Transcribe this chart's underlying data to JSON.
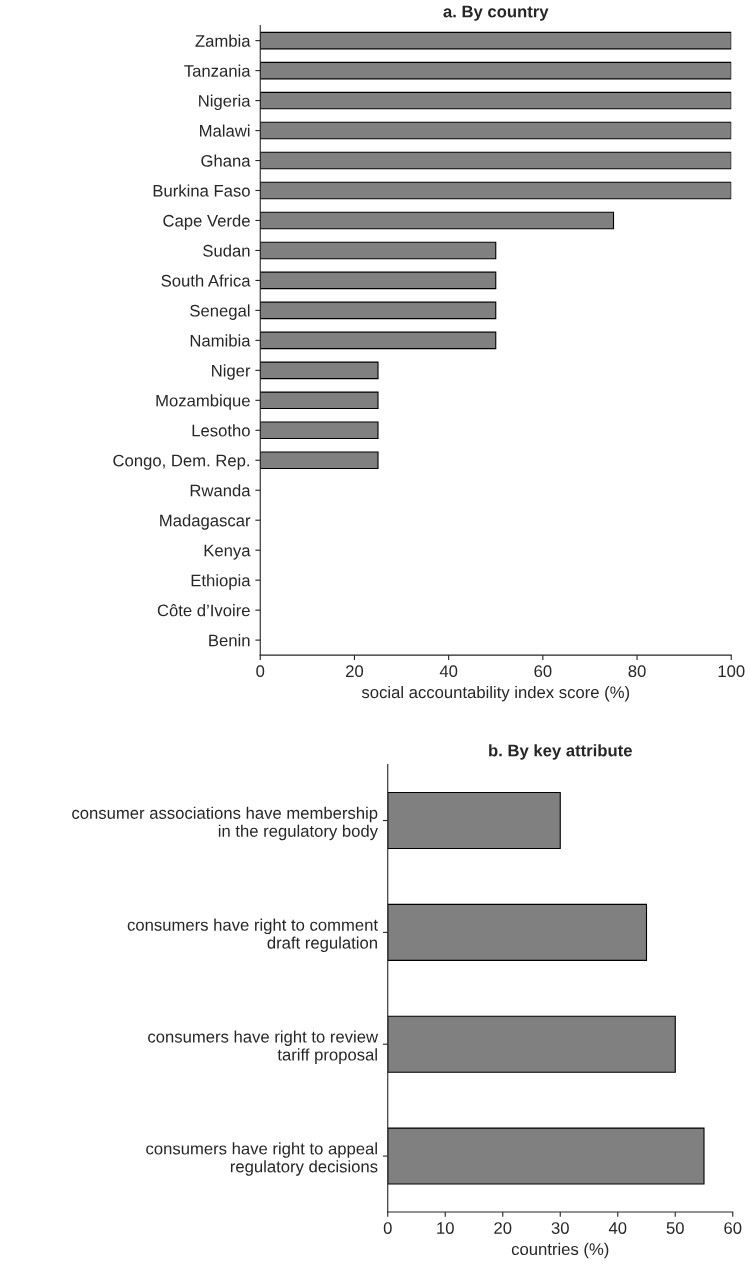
{
  "chart_data": [
    {
      "type": "bar",
      "orientation": "horizontal",
      "title": "a. By country",
      "xlabel": "social accountability index score (%)",
      "categories": [
        "Zambia",
        "Tanzania",
        "Nigeria",
        "Malawi",
        "Ghana",
        "Burkina Faso",
        "Cape Verde",
        "Sudan",
        "South Africa",
        "Senegal",
        "Namibia",
        "Niger",
        "Mozambique",
        "Lesotho",
        "Congo, Dem. Rep.",
        "Rwanda",
        "Madagascar",
        "Kenya",
        "Ethiopia",
        "Côte d’Ivoire",
        "Benin"
      ],
      "values": [
        100,
        100,
        100,
        100,
        100,
        100,
        75,
        50,
        50,
        50,
        50,
        25,
        25,
        25,
        25,
        0,
        0,
        0,
        0,
        0,
        0
      ],
      "color": "#808080",
      "xlim": [
        0,
        100
      ],
      "xticks": [
        0,
        20,
        40,
        60,
        80,
        100
      ],
      "grid": false
    },
    {
      "type": "bar",
      "orientation": "horizontal",
      "title": "b. By key attribute",
      "xlabel": "countries (%)",
      "categories": [
        "consumer associations have membership\nin the regulatory body",
        "consumers have right to comment\ndraft regulation",
        "consumers have right to review\ntariff proposal",
        "consumers have right to appeal\nregulatory decisions"
      ],
      "values": [
        30,
        45,
        50,
        55
      ],
      "color": "#808080",
      "xlim": [
        0,
        60
      ],
      "xticks": [
        0,
        10,
        20,
        30,
        40,
        50,
        60
      ],
      "grid": false
    }
  ]
}
